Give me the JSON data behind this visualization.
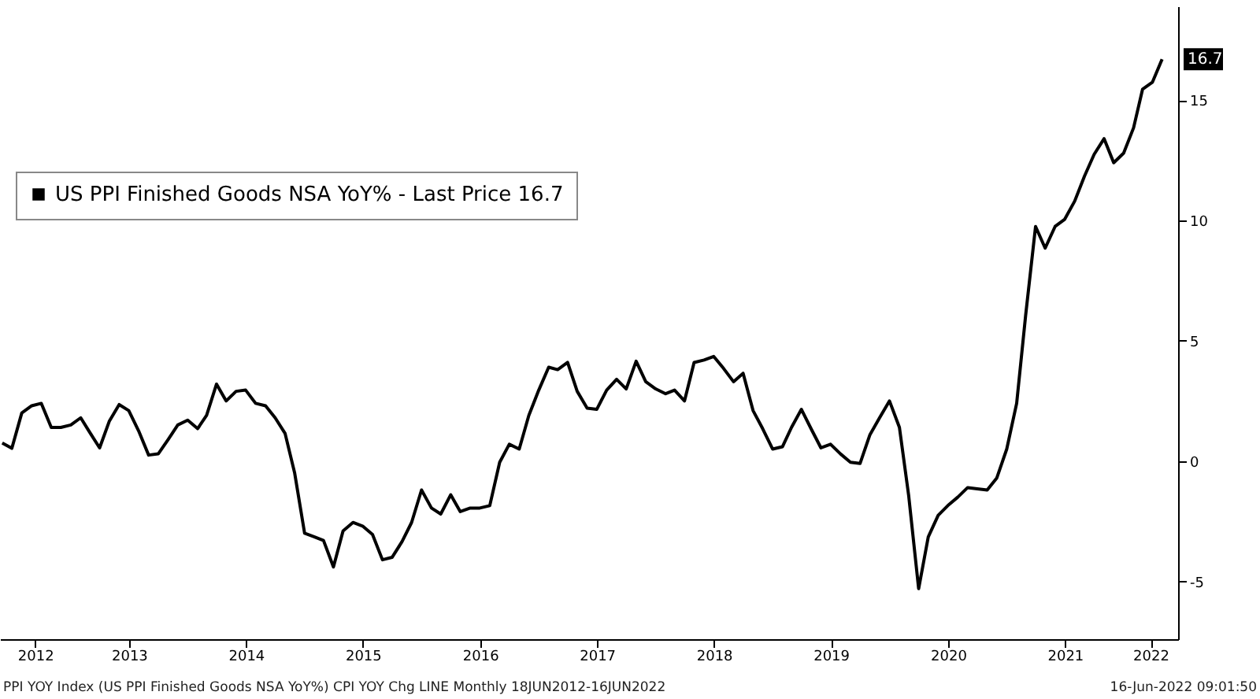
{
  "chart_data": {
    "type": "line",
    "legend": "top left",
    "marker": "none",
    "line_style": "solid",
    "grid": false,
    "xlim": [
      "2012-05-25",
      "2022-06-20"
    ],
    "xticks": [
      {
        "value": "2012-09-12",
        "label": "2012"
      },
      {
        "value": "2013-07-02",
        "label": "2013"
      },
      {
        "value": "2014-07-02",
        "label": "2014"
      },
      {
        "value": "2015-07-02",
        "label": "2015"
      },
      {
        "value": "2016-07-02",
        "label": "2016"
      },
      {
        "value": "2017-07-02",
        "label": "2017"
      },
      {
        "value": "2018-07-02",
        "label": "2018"
      },
      {
        "value": "2019-07-02",
        "label": "2019"
      },
      {
        "value": "2020-07-02",
        "label": "2020"
      },
      {
        "value": "2021-07-02",
        "label": "2021"
      },
      {
        "value": "2022-03-26",
        "label": "2022"
      }
    ],
    "ylim": [
      -7.4,
      18.9
    ],
    "yticks": [
      -5,
      0,
      5,
      10,
      15
    ],
    "annotations": [
      "PPI YOY Index (US PPI Finished Goods NSA YoY%) CPI YOY Chg LINE  Monthly 18JUN2012-16JUN2022",
      "16-Jun-2022 09:01:50"
    ],
    "x": [
      "2012-06",
      "2012-07",
      "2012-08",
      "2012-09",
      "2012-10",
      "2012-11",
      "2012-12",
      "2013-01",
      "2013-02",
      "2013-03",
      "2013-04",
      "2013-05",
      "2013-06",
      "2013-07",
      "2013-08",
      "2013-09",
      "2013-10",
      "2013-11",
      "2013-12",
      "2014-01",
      "2014-02",
      "2014-03",
      "2014-04",
      "2014-05",
      "2014-06",
      "2014-07",
      "2014-08",
      "2014-09",
      "2014-10",
      "2014-11",
      "2014-12",
      "2015-01",
      "2015-02",
      "2015-03",
      "2015-04",
      "2015-05",
      "2015-06",
      "2015-07",
      "2015-08",
      "2015-09",
      "2015-10",
      "2015-11",
      "2015-12",
      "2016-01",
      "2016-02",
      "2016-03",
      "2016-04",
      "2016-05",
      "2016-06",
      "2016-07",
      "2016-08",
      "2016-09",
      "2016-10",
      "2016-11",
      "2016-12",
      "2017-01",
      "2017-02",
      "2017-03",
      "2017-04",
      "2017-05",
      "2017-06",
      "2017-07",
      "2017-08",
      "2017-09",
      "2017-10",
      "2017-11",
      "2017-12",
      "2018-01",
      "2018-02",
      "2018-03",
      "2018-04",
      "2018-05",
      "2018-06",
      "2018-07",
      "2018-08",
      "2018-09",
      "2018-10",
      "2018-11",
      "2018-12",
      "2019-01",
      "2019-02",
      "2019-03",
      "2019-04",
      "2019-05",
      "2019-06",
      "2019-07",
      "2019-08",
      "2019-09",
      "2019-10",
      "2019-11",
      "2019-12",
      "2020-01",
      "2020-02",
      "2020-03",
      "2020-04",
      "2020-05",
      "2020-06",
      "2020-07",
      "2020-08",
      "2020-09",
      "2020-10",
      "2020-11",
      "2020-12",
      "2021-01",
      "2021-02",
      "2021-03",
      "2021-04",
      "2021-05",
      "2021-06",
      "2021-07",
      "2021-08",
      "2021-09",
      "2021-10",
      "2021-11",
      "2021-12",
      "2022-01",
      "2022-02",
      "2022-03",
      "2022-04",
      "2022-05"
    ],
    "series": [
      {
        "name": "US PPI Finished Goods NSA YoY% - Last Price 16.7",
        "color": "#000000",
        "values": [
          0.75,
          0.53,
          2.0,
          2.3,
          2.4,
          1.4,
          1.4,
          1.5,
          1.8,
          1.2,
          0.55,
          1.65,
          2.35,
          2.1,
          1.25,
          0.25,
          0.3,
          0.9,
          1.5,
          1.7,
          1.35,
          1.9,
          3.2,
          2.5,
          2.9,
          2.95,
          2.4,
          2.3,
          1.8,
          1.15,
          -0.5,
          -3.0,
          -3.15,
          -3.3,
          -4.4,
          -2.9,
          -2.55,
          -2.7,
          -3.05,
          -4.1,
          -4.0,
          -3.35,
          -2.55,
          -1.2,
          -1.95,
          -2.2,
          -1.4,
          -2.1,
          -1.95,
          -1.95,
          -1.85,
          -0.05,
          0.7,
          0.5,
          1.9,
          2.95,
          3.9,
          3.8,
          4.1,
          2.9,
          2.2,
          2.15,
          2.95,
          3.4,
          3.0,
          4.15,
          3.3,
          3.0,
          2.8,
          2.95,
          2.5,
          4.1,
          4.2,
          4.35,
          3.85,
          3.3,
          3.65,
          2.1,
          1.35,
          0.5,
          0.6,
          1.4,
          2.15,
          1.35,
          0.55,
          0.7,
          0.3,
          -0.05,
          -0.1,
          1.1,
          1.8,
          2.5,
          1.4,
          -1.45,
          -5.3,
          -3.15,
          -2.25,
          -1.85,
          -1.5,
          -1.1,
          -1.15,
          -1.2,
          -0.7,
          0.5,
          2.4,
          6.05,
          9.75,
          8.85,
          9.75,
          10.05,
          10.8,
          11.85,
          12.75,
          13.4,
          12.4,
          12.8,
          13.85,
          15.45,
          15.75,
          16.7
        ],
        "value_labels": [
          null,
          null,
          null,
          null,
          null,
          null,
          null,
          null,
          null,
          null,
          null,
          null,
          null,
          null,
          null,
          null,
          null,
          null,
          null,
          null,
          null,
          null,
          null,
          null,
          null,
          null,
          null,
          null,
          null,
          null,
          null,
          null,
          null,
          null,
          null,
          null,
          null,
          null,
          null,
          null,
          null,
          null,
          null,
          null,
          null,
          null,
          null,
          null,
          null,
          null,
          null,
          null,
          null,
          null,
          null,
          null,
          null,
          null,
          null,
          null,
          null,
          null,
          null,
          null,
          null,
          null,
          null,
          null,
          null,
          null,
          null,
          null,
          null,
          null,
          null,
          null,
          null,
          null,
          null,
          null,
          null,
          null,
          null,
          null,
          null,
          null,
          null,
          null,
          null,
          null,
          null,
          null,
          null,
          null,
          null,
          null,
          null,
          null,
          null,
          null,
          null,
          null,
          null,
          null,
          null,
          null,
          null,
          null,
          null,
          null,
          null,
          null,
          null,
          null,
          null,
          null,
          null,
          null,
          null,
          "16.7"
        ]
      }
    ]
  }
}
